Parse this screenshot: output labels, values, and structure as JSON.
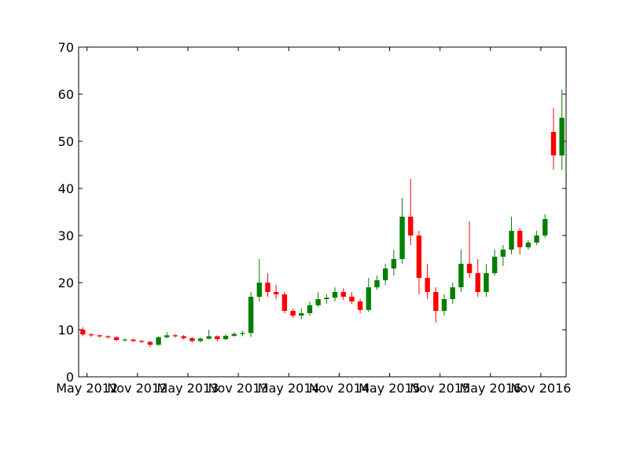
{
  "chart_data": {
    "type": "candlestick",
    "x": [
      "2012-04",
      "2012-05",
      "2012-06",
      "2012-07",
      "2012-08",
      "2012-09",
      "2012-10",
      "2012-11",
      "2012-12",
      "2013-01",
      "2013-02",
      "2013-03",
      "2013-04",
      "2013-05",
      "2013-06",
      "2013-07",
      "2013-08",
      "2013-09",
      "2013-10",
      "2013-11",
      "2013-12",
      "2014-01",
      "2014-02",
      "2014-03",
      "2014-04",
      "2014-05",
      "2014-06",
      "2014-07",
      "2014-08",
      "2014-09",
      "2014-10",
      "2014-11",
      "2014-12",
      "2015-01",
      "2015-02",
      "2015-03",
      "2015-04",
      "2015-05",
      "2015-06",
      "2015-07",
      "2015-08",
      "2015-09",
      "2015-10",
      "2015-11",
      "2015-12",
      "2016-01",
      "2016-02",
      "2016-03",
      "2016-04",
      "2016-05",
      "2016-06",
      "2016-07",
      "2016-08",
      "2016-09",
      "2016-10",
      "2016-11",
      "2016-12",
      "2017-01"
    ],
    "open": [
      10,
      9,
      8.8,
      8.6,
      8.4,
      7.8,
      7.9,
      7.6,
      7.4,
      6.8,
      8.4,
      8.8,
      8.6,
      8.2,
      7.6,
      8.1,
      8.6,
      8,
      8.7,
      9.1,
      9.3,
      17,
      20,
      18,
      17.5,
      14,
      13,
      13.5,
      15.2,
      16.5,
      16.8,
      18,
      17,
      16,
      14.2,
      19,
      20.5,
      23,
      25,
      34,
      30,
      21,
      18,
      14,
      16.5,
      19,
      24,
      22,
      18,
      22,
      25.5,
      27,
      31,
      27.5,
      28.5,
      30,
      52,
      47
    ],
    "high": [
      10.5,
      9.3,
      9,
      8.8,
      8.6,
      8.2,
      8.1,
      7.8,
      7.6,
      8.6,
      9.5,
      9.1,
      8.9,
      8.4,
      8.4,
      10,
      8.8,
      9,
      9.4,
      9.8,
      18,
      25,
      22,
      19.5,
      18,
      14.5,
      14.5,
      16,
      18,
      17.5,
      19,
      18.8,
      18,
      16.5,
      21,
      21.5,
      24,
      27,
      38,
      42,
      31,
      24,
      19,
      17.5,
      20,
      27,
      33,
      25,
      24,
      27,
      28,
      34,
      31.5,
      29,
      31,
      34.5,
      57,
      61
    ],
    "low": [
      8.6,
      8.5,
      8.3,
      8.1,
      7.6,
      7.5,
      7.4,
      7.2,
      6.3,
      6.6,
      8.2,
      8.3,
      7.9,
      7.3,
      7.3,
      7.9,
      7.5,
      7.8,
      8.5,
      8.6,
      8.5,
      16,
      17,
      16.5,
      13.5,
      12.5,
      12.2,
      13,
      14.8,
      15.5,
      16,
      16.3,
      15.5,
      13.5,
      13.8,
      18.5,
      19.5,
      21.5,
      24,
      28,
      17.5,
      16.5,
      11.5,
      13,
      15.5,
      18,
      21,
      17,
      17,
      21.5,
      23.5,
      26,
      26,
      27,
      28,
      29.5,
      44,
      44
    ],
    "close": [
      9,
      8.8,
      8.6,
      8.4,
      7.8,
      7.9,
      7.6,
      7.4,
      6.8,
      8.4,
      8.8,
      8.6,
      8.2,
      7.6,
      8.1,
      8.6,
      8,
      8.7,
      9.1,
      9.3,
      17,
      20,
      18,
      17.5,
      14,
      13,
      13.5,
      15.2,
      16.5,
      16.8,
      18,
      17,
      16,
      14.2,
      19,
      20.5,
      23,
      25,
      34,
      30,
      21,
      18,
      14,
      16.5,
      19,
      24,
      22,
      18,
      22,
      25.5,
      27,
      31,
      27.5,
      28.5,
      30,
      33.5,
      47,
      55
    ],
    "up_color": "green",
    "down_color": "red",
    "xlim": [
      "2012-04",
      "2017-02"
    ],
    "xticks": [
      {
        "value": "2012-05",
        "label": "May 2012"
      },
      {
        "value": "2012-11",
        "label": "Nov 2012"
      },
      {
        "value": "2013-05",
        "label": "May 2013"
      },
      {
        "value": "2013-11",
        "label": "Nov 2013"
      },
      {
        "value": "2014-05",
        "label": "May 2014"
      },
      {
        "value": "2014-11",
        "label": "Nov 2014"
      },
      {
        "value": "2015-05",
        "label": "May 2015"
      },
      {
        "value": "2015-11",
        "label": "Nov 2015"
      },
      {
        "value": "2016-05",
        "label": "May 2016"
      },
      {
        "value": "2016-11",
        "label": "Nov 2016"
      }
    ],
    "ylim": [
      0,
      70
    ],
    "yticks": [
      0,
      10,
      20,
      30,
      40,
      50,
      60,
      70
    ]
  }
}
